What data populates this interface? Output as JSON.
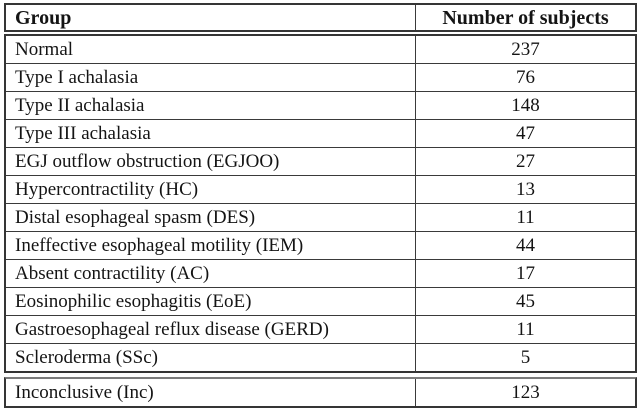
{
  "table": {
    "header": {
      "group": "Group",
      "count": "Number of subjects"
    },
    "rows": [
      {
        "group": "Normal",
        "count": "237"
      },
      {
        "group": "Type I achalasia",
        "count": "76"
      },
      {
        "group": "Type II achalasia",
        "count": "148"
      },
      {
        "group": "Type III achalasia",
        "count": "47"
      },
      {
        "group": "EGJ outflow obstruction (EGJOO)",
        "count": "27"
      },
      {
        "group": "Hypercontractility (HC)",
        "count": "13"
      },
      {
        "group": "Distal esophageal spasm (DES)",
        "count": "11"
      },
      {
        "group": "Ineffective esophageal motility (IEM)",
        "count": "44"
      },
      {
        "group": "Absent contractility (AC)",
        "count": "17"
      },
      {
        "group": "Eosinophilic esophagitis (EoE)",
        "count": "45"
      },
      {
        "group": "Gastroesophageal reflux disease (GERD)",
        "count": "11"
      },
      {
        "group": "Scleroderma (SSc)",
        "count": "5"
      }
    ],
    "last_row": {
      "group": "Inconclusive (Inc)",
      "count": "123"
    }
  }
}
